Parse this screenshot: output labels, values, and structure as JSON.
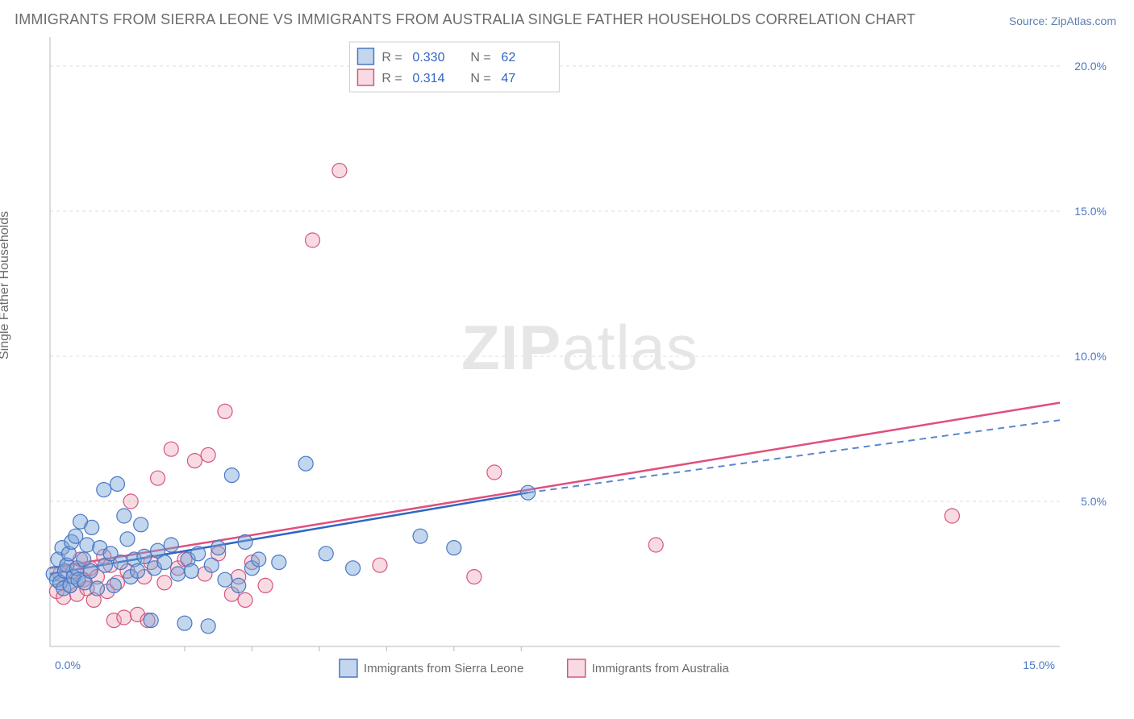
{
  "title": "IMMIGRANTS FROM SIERRA LEONE VS IMMIGRANTS FROM AUSTRALIA SINGLE FATHER HOUSEHOLDS CORRELATION CHART",
  "source_prefix": "Source: ",
  "source_link": "ZipAtlas.com",
  "ylabel": "Single Father Households",
  "watermark_a": "ZIP",
  "watermark_b": "atlas",
  "chart": {
    "type": "scatter",
    "background_color": "#ffffff",
    "grid_color": "#dcdcdc",
    "axis_color": "#b8b8b8",
    "tick_label_color": "#4a77c4",
    "font_family": "Arial",
    "label_fontsize": 16,
    "tick_fontsize": 14,
    "marker_radius": 9,
    "xlim": [
      0,
      15
    ],
    "ylim": [
      0,
      21
    ],
    "x_ticks_labeled": [
      {
        "v": 0,
        "label": "0.0%"
      },
      {
        "v": 15,
        "label": "15.0%"
      }
    ],
    "x_ticks_unlabeled": [
      2,
      3,
      4,
      5,
      6,
      7
    ],
    "y_ticks": [
      {
        "v": 5,
        "label": "5.0%"
      },
      {
        "v": 10,
        "label": "10.0%"
      },
      {
        "v": 15,
        "label": "15.0%"
      },
      {
        "v": 20,
        "label": "20.0%"
      }
    ],
    "series": [
      {
        "id": "sierra_leone",
        "label": "Immigrants from Sierra Leone",
        "fill": "rgba(120,165,216,0.45)",
        "stroke": "#4a77c4",
        "R": "0.330",
        "N": "62",
        "trend": {
          "x1": 0,
          "y1": 2.5,
          "x2": 7.1,
          "y2": 5.3,
          "dash_to_x": 15,
          "dash_to_y": 7.8,
          "color": "#2f66c3",
          "dash_color": "#5b87ce"
        },
        "points": [
          [
            0.05,
            2.5
          ],
          [
            0.1,
            2.3
          ],
          [
            0.12,
            3.0
          ],
          [
            0.15,
            2.2
          ],
          [
            0.18,
            3.4
          ],
          [
            0.2,
            2.0
          ],
          [
            0.22,
            2.6
          ],
          [
            0.25,
            2.8
          ],
          [
            0.28,
            3.2
          ],
          [
            0.3,
            2.1
          ],
          [
            0.32,
            3.6
          ],
          [
            0.35,
            2.4
          ],
          [
            0.38,
            3.8
          ],
          [
            0.4,
            2.7
          ],
          [
            0.42,
            2.3
          ],
          [
            0.45,
            4.3
          ],
          [
            0.5,
            3.0
          ],
          [
            0.52,
            2.2
          ],
          [
            0.55,
            3.5
          ],
          [
            0.6,
            2.6
          ],
          [
            0.62,
            4.1
          ],
          [
            0.7,
            2.0
          ],
          [
            0.74,
            3.4
          ],
          [
            0.8,
            5.4
          ],
          [
            0.82,
            2.8
          ],
          [
            0.9,
            3.2
          ],
          [
            0.95,
            2.1
          ],
          [
            1.0,
            5.6
          ],
          [
            1.05,
            2.9
          ],
          [
            1.1,
            4.5
          ],
          [
            1.15,
            3.7
          ],
          [
            1.2,
            2.4
          ],
          [
            1.25,
            3.0
          ],
          [
            1.3,
            2.6
          ],
          [
            1.35,
            4.2
          ],
          [
            1.4,
            3.1
          ],
          [
            1.5,
            0.9
          ],
          [
            1.55,
            2.7
          ],
          [
            1.6,
            3.3
          ],
          [
            1.7,
            2.9
          ],
          [
            1.8,
            3.5
          ],
          [
            1.9,
            2.5
          ],
          [
            2.0,
            0.8
          ],
          [
            2.05,
            3.0
          ],
          [
            2.1,
            2.6
          ],
          [
            2.2,
            3.2
          ],
          [
            2.35,
            0.7
          ],
          [
            2.4,
            2.8
          ],
          [
            2.5,
            3.4
          ],
          [
            2.6,
            2.3
          ],
          [
            2.7,
            5.9
          ],
          [
            2.8,
            2.1
          ],
          [
            2.9,
            3.6
          ],
          [
            3.0,
            2.7
          ],
          [
            3.1,
            3.0
          ],
          [
            3.4,
            2.9
          ],
          [
            3.8,
            6.3
          ],
          [
            4.1,
            3.2
          ],
          [
            4.5,
            2.7
          ],
          [
            5.5,
            3.8
          ],
          [
            6.0,
            3.4
          ],
          [
            7.1,
            5.3
          ]
        ]
      },
      {
        "id": "australia",
        "label": "Immigrants from Australia",
        "fill": "rgba(236,160,180,0.38)",
        "stroke": "#d4567d",
        "R": "0.314",
        "N": "47",
        "trend": {
          "x1": 0,
          "y1": 2.7,
          "x2": 15,
          "y2": 8.4,
          "color": "#e04f7c"
        },
        "points": [
          [
            0.1,
            1.9
          ],
          [
            0.15,
            2.5
          ],
          [
            0.2,
            1.7
          ],
          [
            0.25,
            2.8
          ],
          [
            0.3,
            2.1
          ],
          [
            0.35,
            2.6
          ],
          [
            0.4,
            1.8
          ],
          [
            0.45,
            3.0
          ],
          [
            0.5,
            2.3
          ],
          [
            0.55,
            2.0
          ],
          [
            0.6,
            2.7
          ],
          [
            0.65,
            1.6
          ],
          [
            0.7,
            2.4
          ],
          [
            0.8,
            3.1
          ],
          [
            0.85,
            1.9
          ],
          [
            0.9,
            2.8
          ],
          [
            0.95,
            0.9
          ],
          [
            1.0,
            2.2
          ],
          [
            1.1,
            1.0
          ],
          [
            1.15,
            2.6
          ],
          [
            1.2,
            5.0
          ],
          [
            1.3,
            1.1
          ],
          [
            1.4,
            2.4
          ],
          [
            1.45,
            0.9
          ],
          [
            1.5,
            2.9
          ],
          [
            1.6,
            5.8
          ],
          [
            1.7,
            2.2
          ],
          [
            1.8,
            6.8
          ],
          [
            1.9,
            2.7
          ],
          [
            2.0,
            3.0
          ],
          [
            2.15,
            6.4
          ],
          [
            2.3,
            2.5
          ],
          [
            2.35,
            6.6
          ],
          [
            2.5,
            3.2
          ],
          [
            2.6,
            8.1
          ],
          [
            2.7,
            1.8
          ],
          [
            2.8,
            2.4
          ],
          [
            2.9,
            1.6
          ],
          [
            3.0,
            2.9
          ],
          [
            3.2,
            2.1
          ],
          [
            3.9,
            14.0
          ],
          [
            4.3,
            16.4
          ],
          [
            4.9,
            2.8
          ],
          [
            6.3,
            2.4
          ],
          [
            6.6,
            6.0
          ],
          [
            9.0,
            3.5
          ],
          [
            13.4,
            4.5
          ]
        ]
      }
    ]
  },
  "legend_top": {
    "rows": [
      {
        "series": "sierra_leone",
        "R": "0.330",
        "N": "62"
      },
      {
        "series": "australia",
        "R": "0.314",
        "N": "47"
      }
    ],
    "r_label": "R =",
    "n_label": "N ="
  },
  "legend_bottom": {
    "items": [
      {
        "series": "sierra_leone",
        "label": "Immigrants from Sierra Leone"
      },
      {
        "series": "australia",
        "label": "Immigrants from Australia"
      }
    ]
  }
}
